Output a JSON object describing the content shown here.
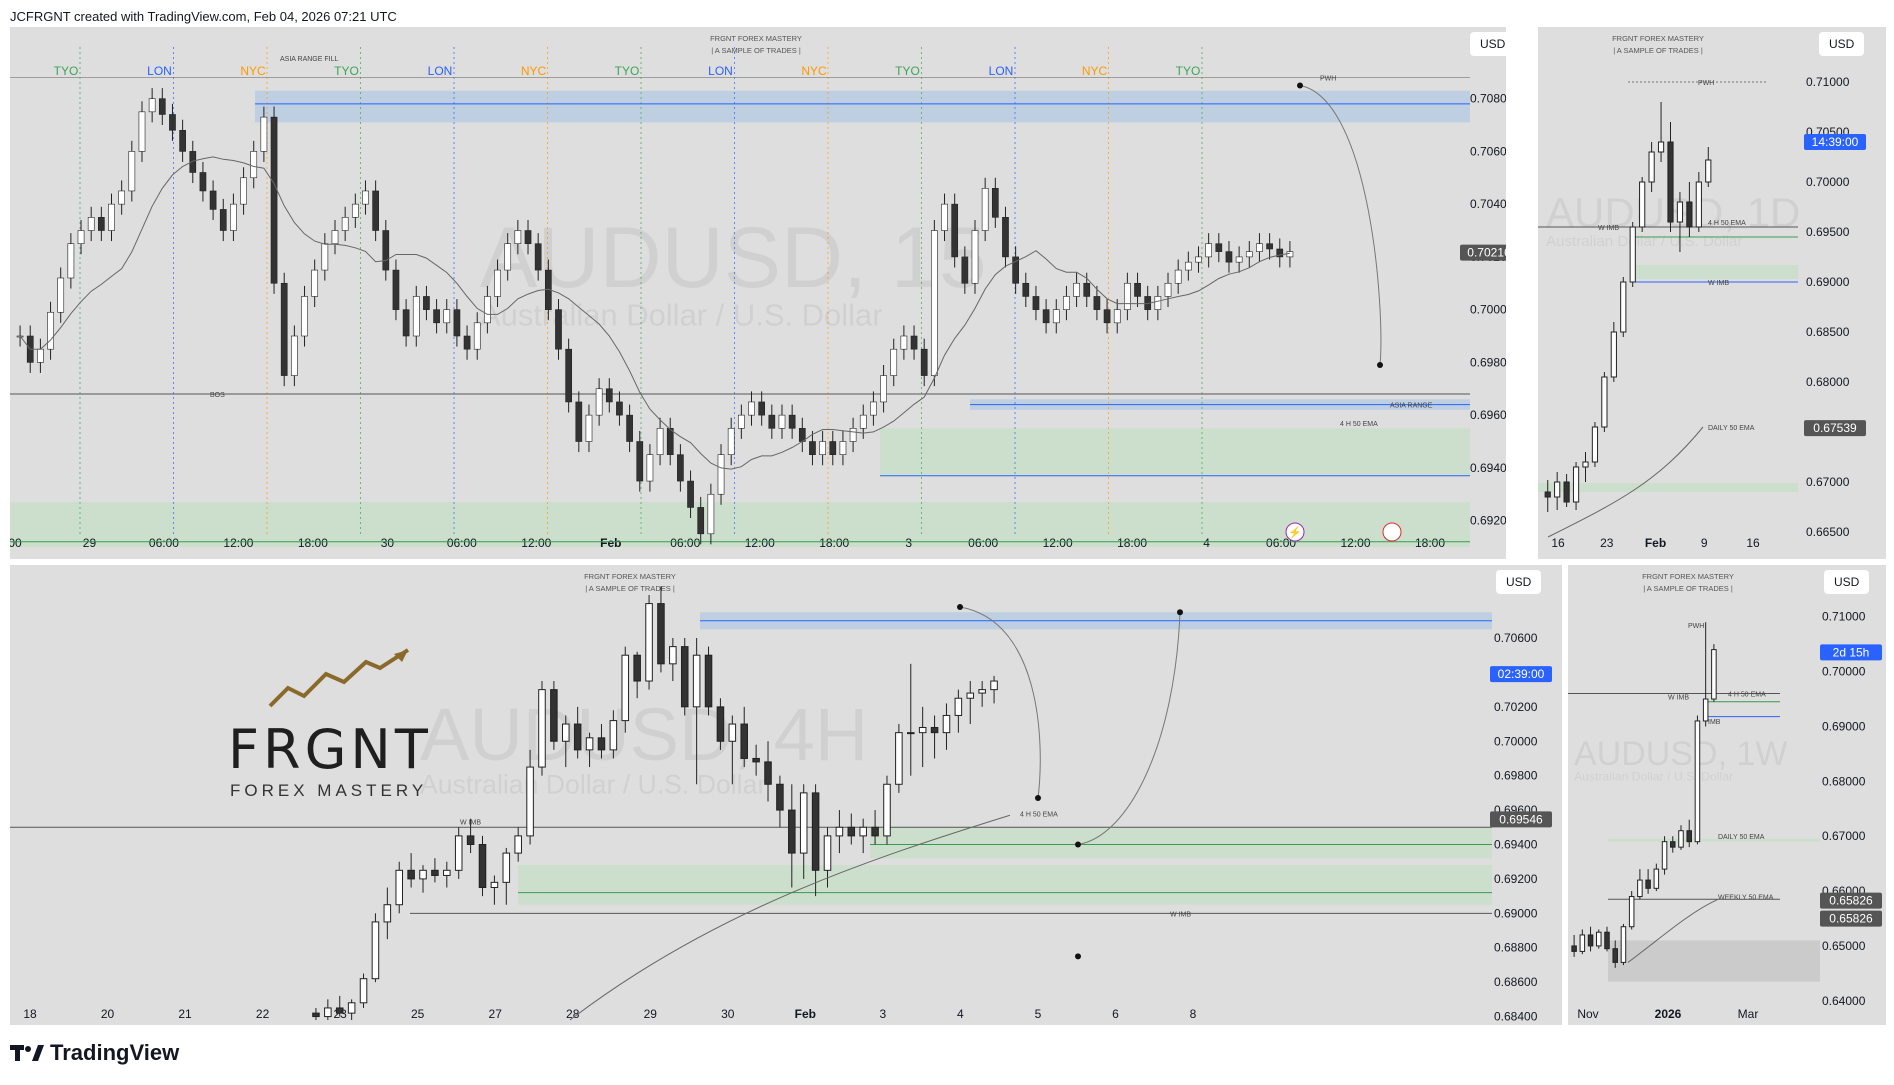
{
  "header": "JCFRGNT created with TradingView.com, Feb 04, 2026 07:21 UTC",
  "footer": {
    "logo_text": "TradingView"
  },
  "brand": {
    "name": "FRGNT",
    "sub": "FOREX MASTERY"
  },
  "colors": {
    "panel_bg": "#dedede",
    "candle_up": "#ffffff",
    "candle_down": "#333333",
    "blue_zone": "#b9cde3",
    "green_zone": "#c9dfc9",
    "blue_line": "#2962ff",
    "green_line": "#3a9a52",
    "price_badge": "#555555",
    "timer_badge": "#2962ff"
  },
  "chart_data": [
    {
      "type": "candlestick",
      "id": "main",
      "timeframe": "15",
      "symbol_watermark": "AUDUSD, 15",
      "symbol_desc_watermark": "Australian Dollar / U.S. Dollar",
      "title": "FRGNT FOREX MASTERY",
      "subtitle": "| A SAMPLE OF TRADES |",
      "currency": "USD",
      "ylim": [
        0.691,
        0.7092
      ],
      "y_ticks": [
        "0.70800",
        "0.70600",
        "0.70400",
        "0.70200",
        "0.70000",
        "0.69800",
        "0.69600",
        "0.69400",
        "0.69200"
      ],
      "x_ticks": [
        "00",
        "29",
        "06:00",
        "12:00",
        "18:00",
        "30",
        "06:00",
        "12:00",
        "Feb",
        "06:00",
        "12:00",
        "18:00",
        "3",
        "06:00",
        "12:00",
        "18:00",
        "4",
        "06:00",
        "12:00",
        "18:00"
      ],
      "last_price": "0.70216",
      "sessions": [
        {
          "label": "TYO"
        },
        {
          "label": "LON"
        },
        {
          "label": "NYC"
        },
        {
          "label": "TYO"
        },
        {
          "label": "LON"
        },
        {
          "label": "NYC"
        },
        {
          "label": "TYO"
        },
        {
          "label": "LON"
        },
        {
          "label": "NYC"
        },
        {
          "label": "TYO"
        },
        {
          "label": "LON"
        },
        {
          "label": "NYC"
        },
        {
          "label": "TYO"
        }
      ],
      "annotations": [
        "ASIA RANGE FILL",
        "PWH",
        "BOS",
        "ASIA RANGE",
        "4 H 50 EMA"
      ],
      "close_path": [
        0.699,
        0.698,
        0.6985,
        0.6999,
        0.7012,
        0.7025,
        0.703,
        0.7035,
        0.703,
        0.704,
        0.7045,
        0.706,
        0.7075,
        0.708,
        0.7074,
        0.7068,
        0.706,
        0.7052,
        0.7045,
        0.7038,
        0.703,
        0.704,
        0.705,
        0.706,
        0.7073,
        0.701,
        0.6975,
        0.699,
        0.7005,
        0.7015,
        0.7025,
        0.703,
        0.7035,
        0.704,
        0.7045,
        0.703,
        0.7015,
        0.7,
        0.699,
        0.7005,
        0.7,
        0.6995,
        0.7,
        0.699,
        0.6985,
        0.6995,
        0.7005,
        0.7015,
        0.7025,
        0.703,
        0.7025,
        0.7015,
        0.7,
        0.6985,
        0.6965,
        0.695,
        0.696,
        0.697,
        0.6965,
        0.696,
        0.695,
        0.6935,
        0.6945,
        0.6955,
        0.6945,
        0.6935,
        0.6925,
        0.6915,
        0.693,
        0.6945,
        0.6955,
        0.696,
        0.6965,
        0.696,
        0.6955,
        0.696,
        0.6955,
        0.695,
        0.6945,
        0.695,
        0.6945,
        0.695,
        0.6955,
        0.696,
        0.6965,
        0.6975,
        0.6985,
        0.699,
        0.6985,
        0.6975,
        0.703,
        0.704,
        0.702,
        0.701,
        0.703,
        0.7046,
        0.7035,
        0.702,
        0.701,
        0.7005,
        0.7,
        0.6995,
        0.7,
        0.7005,
        0.701,
        0.7005,
        0.7,
        0.6995,
        0.7,
        0.701,
        0.7005,
        0.7,
        0.7005,
        0.701,
        0.7015,
        0.7018,
        0.702,
        0.7025,
        0.7022,
        0.7018,
        0.702,
        0.7022,
        0.7025,
        0.7023,
        0.702,
        0.7022
      ]
    },
    {
      "type": "candlestick",
      "id": "top-right",
      "timeframe": "D",
      "symbol_watermark": "AUDUSD, 1D",
      "symbol_desc_watermark": "Australian Dollar / U.S. Dollar",
      "title": "FRGNT FOREX MASTERY",
      "subtitle": "| A SAMPLE OF TRADES |",
      "currency": "USD",
      "ylim": [
        0.664,
        0.7115
      ],
      "y_ticks": [
        "0.71000",
        "0.70500",
        "0.70000",
        "0.69500",
        "0.69000",
        "0.68500",
        "0.68000",
        "0.67500",
        "0.67000",
        "0.66500"
      ],
      "x_ticks": [
        "16",
        "23",
        "Feb",
        "9",
        "16"
      ],
      "timer": "14:39:00",
      "ema_price": "0.67539",
      "annotations": [
        "PWH",
        "W IMB",
        "4 H 50 EMA",
        "W IMB",
        "DAILY 50 EMA"
      ],
      "candles": [
        [
          0.669,
          0.6702,
          0.667,
          0.6685
        ],
        [
          0.6685,
          0.671,
          0.6672,
          0.67
        ],
        [
          0.67,
          0.6708,
          0.6675,
          0.668
        ],
        [
          0.668,
          0.672,
          0.6672,
          0.6715
        ],
        [
          0.6715,
          0.673,
          0.67,
          0.672
        ],
        [
          0.672,
          0.676,
          0.6715,
          0.6755
        ],
        [
          0.6755,
          0.681,
          0.675,
          0.6805
        ],
        [
          0.6805,
          0.686,
          0.68,
          0.685
        ],
        [
          0.685,
          0.6905,
          0.6845,
          0.69
        ],
        [
          0.69,
          0.696,
          0.6895,
          0.6955
        ],
        [
          0.6955,
          0.7005,
          0.695,
          0.7
        ],
        [
          0.7,
          0.704,
          0.699,
          0.703
        ],
        [
          0.703,
          0.708,
          0.702,
          0.704
        ],
        [
          0.704,
          0.706,
          0.695,
          0.696
        ],
        [
          0.696,
          0.699,
          0.693,
          0.698
        ],
        [
          0.698,
          0.7,
          0.6945,
          0.6955
        ],
        [
          0.6955,
          0.701,
          0.695,
          0.7
        ],
        [
          0.7,
          0.7035,
          0.6995,
          0.7022
        ]
      ]
    },
    {
      "type": "candlestick",
      "id": "bottom-left",
      "timeframe": "4H",
      "symbol_watermark": "AUDUSD, 4H",
      "symbol_desc_watermark": "Australian Dollar / U.S. Dollar",
      "title": "FRGNT FOREX MASTERY",
      "subtitle": "| A SAMPLE OF TRADES |",
      "currency": "USD",
      "ylim": [
        0.6838,
        0.7085
      ],
      "y_ticks": [
        "0.70600",
        "0.70400",
        "0.70200",
        "0.70000",
        "0.69800",
        "0.69600",
        "0.69400",
        "0.69200",
        "0.69000",
        "0.68800",
        "0.68600",
        "0.68400"
      ],
      "x_ticks": [
        "18",
        "20",
        "21",
        "22",
        "23",
        "25",
        "27",
        "28",
        "29",
        "30",
        "Feb",
        "3",
        "4",
        "5",
        "6",
        "8"
      ],
      "timer": "02:39:00",
      "ema_price": "0.69546",
      "annotations": [
        "W IMB",
        "4 H 50 EMA",
        "W IMB"
      ],
      "candles": [
        [
          0.6842,
          0.6845,
          0.6838,
          0.684
        ],
        [
          0.684,
          0.685,
          0.6838,
          0.6845
        ],
        [
          0.6845,
          0.6852,
          0.684,
          0.6842
        ],
        [
          0.6842,
          0.685,
          0.6838,
          0.6848
        ],
        [
          0.6848,
          0.6865,
          0.6845,
          0.6862
        ],
        [
          0.6862,
          0.69,
          0.686,
          0.6895
        ],
        [
          0.6895,
          0.6915,
          0.6885,
          0.6905
        ],
        [
          0.6905,
          0.693,
          0.69,
          0.6925
        ],
        [
          0.6925,
          0.6935,
          0.6915,
          0.692
        ],
        [
          0.692,
          0.6928,
          0.6912,
          0.6925
        ],
        [
          0.6925,
          0.6932,
          0.6918,
          0.6922
        ],
        [
          0.6922,
          0.693,
          0.6915,
          0.6925
        ],
        [
          0.6925,
          0.695,
          0.692,
          0.6945
        ],
        [
          0.6945,
          0.6955,
          0.6935,
          0.694
        ],
        [
          0.694,
          0.6945,
          0.691,
          0.6915
        ],
        [
          0.6915,
          0.6922,
          0.6905,
          0.6918
        ],
        [
          0.6918,
          0.6938,
          0.6905,
          0.6935
        ],
        [
          0.6935,
          0.695,
          0.693,
          0.6945
        ],
        [
          0.6945,
          0.6995,
          0.694,
          0.6985
        ],
        [
          0.6985,
          0.7035,
          0.698,
          0.703
        ],
        [
          0.703,
          0.7035,
          0.6995,
          0.7
        ],
        [
          0.7,
          0.7015,
          0.6985,
          0.701
        ],
        [
          0.701,
          0.702,
          0.699,
          0.6995
        ],
        [
          0.6995,
          0.7005,
          0.6985,
          0.7002
        ],
        [
          0.7002,
          0.701,
          0.699,
          0.6995
        ],
        [
          0.6995,
          0.7018,
          0.699,
          0.7012
        ],
        [
          0.7012,
          0.7055,
          0.7005,
          0.705
        ],
        [
          0.705,
          0.7052,
          0.7025,
          0.7035
        ],
        [
          0.7035,
          0.7085,
          0.703,
          0.708
        ],
        [
          0.708,
          0.709,
          0.704,
          0.7045
        ],
        [
          0.7045,
          0.706,
          0.7035,
          0.7055
        ],
        [
          0.7055,
          0.706,
          0.7015,
          0.702
        ],
        [
          0.702,
          0.706,
          0.6975,
          0.705
        ],
        [
          0.705,
          0.7055,
          0.7015,
          0.702
        ],
        [
          0.702,
          0.7025,
          0.6995,
          0.7
        ],
        [
          0.7,
          0.7015,
          0.6975,
          0.701
        ],
        [
          0.701,
          0.702,
          0.6985,
          0.699
        ],
        [
          0.699,
          0.6998,
          0.698,
          0.6988
        ],
        [
          0.6988,
          0.7,
          0.6965,
          0.6975
        ],
        [
          0.6975,
          0.698,
          0.695,
          0.696
        ],
        [
          0.696,
          0.6975,
          0.6915,
          0.6935
        ],
        [
          0.6935,
          0.6975,
          0.692,
          0.697
        ],
        [
          0.697,
          0.6975,
          0.691,
          0.6925
        ],
        [
          0.6925,
          0.695,
          0.6915,
          0.6945
        ],
        [
          0.6945,
          0.696,
          0.6935,
          0.695
        ],
        [
          0.695,
          0.6958,
          0.694,
          0.6945
        ],
        [
          0.6945,
          0.6955,
          0.6935,
          0.695
        ],
        [
          0.695,
          0.696,
          0.694,
          0.6945
        ],
        [
          0.6945,
          0.698,
          0.694,
          0.6975
        ],
        [
          0.6975,
          0.701,
          0.697,
          0.7005
        ],
        [
          0.7005,
          0.7045,
          0.698,
          0.7005
        ],
        [
          0.7005,
          0.702,
          0.6985,
          0.7008
        ],
        [
          0.7008,
          0.7015,
          0.699,
          0.7005
        ],
        [
          0.7005,
          0.7022,
          0.6995,
          0.7015
        ],
        [
          0.7015,
          0.703,
          0.7005,
          0.7025
        ],
        [
          0.7025,
          0.7035,
          0.701,
          0.7028
        ],
        [
          0.7028,
          0.7035,
          0.702,
          0.703
        ],
        [
          0.703,
          0.7038,
          0.7022,
          0.7035
        ]
      ]
    },
    {
      "type": "candlestick",
      "id": "bottom-right",
      "timeframe": "1W",
      "symbol_watermark": "AUDUSD, 1W",
      "symbol_desc_watermark": "Australian Dollar / U.S. Dollar",
      "title": "FRGNT FOREX MASTERY",
      "subtitle": "| A SAMPLE OF TRADES |",
      "currency": "USD",
      "ylim": [
        0.6365,
        0.7125
      ],
      "y_ticks": [
        "0.71000",
        "0.70000",
        "0.69000",
        "0.68000",
        "0.67000",
        "0.66000",
        "0.65000",
        "0.64000"
      ],
      "x_ticks": [
        "Nov",
        "2026",
        "Mar"
      ],
      "timer": "2d 15h",
      "ema_price_1": "0.65826",
      "ema_price_2": "0.65826",
      "annotations": [
        "PWH",
        "W IMB",
        "4 H 50 EMA",
        "IMB",
        "DAILY 50 EMA",
        "WEEKLY 50 EMA"
      ],
      "candles": [
        [
          0.65,
          0.652,
          0.648,
          0.649
        ],
        [
          0.649,
          0.653,
          0.6485,
          0.652
        ],
        [
          0.652,
          0.6535,
          0.649,
          0.65
        ],
        [
          0.65,
          0.653,
          0.6495,
          0.6525
        ],
        [
          0.6525,
          0.6535,
          0.649,
          0.6495
        ],
        [
          0.6495,
          0.651,
          0.646,
          0.647
        ],
        [
          0.647,
          0.654,
          0.6465,
          0.6535
        ],
        [
          0.6535,
          0.66,
          0.653,
          0.659
        ],
        [
          0.659,
          0.664,
          0.6585,
          0.662
        ],
        [
          0.662,
          0.664,
          0.6595,
          0.6605
        ],
        [
          0.6605,
          0.665,
          0.66,
          0.664
        ],
        [
          0.664,
          0.67,
          0.663,
          0.669
        ],
        [
          0.669,
          0.67,
          0.667,
          0.668
        ],
        [
          0.668,
          0.672,
          0.6675,
          0.671
        ],
        [
          0.671,
          0.673,
          0.668,
          0.669
        ],
        [
          0.669,
          0.692,
          0.6685,
          0.691
        ],
        [
          0.691,
          0.709,
          0.69,
          0.695
        ],
        [
          0.695,
          0.705,
          0.6945,
          0.704
        ]
      ]
    }
  ]
}
